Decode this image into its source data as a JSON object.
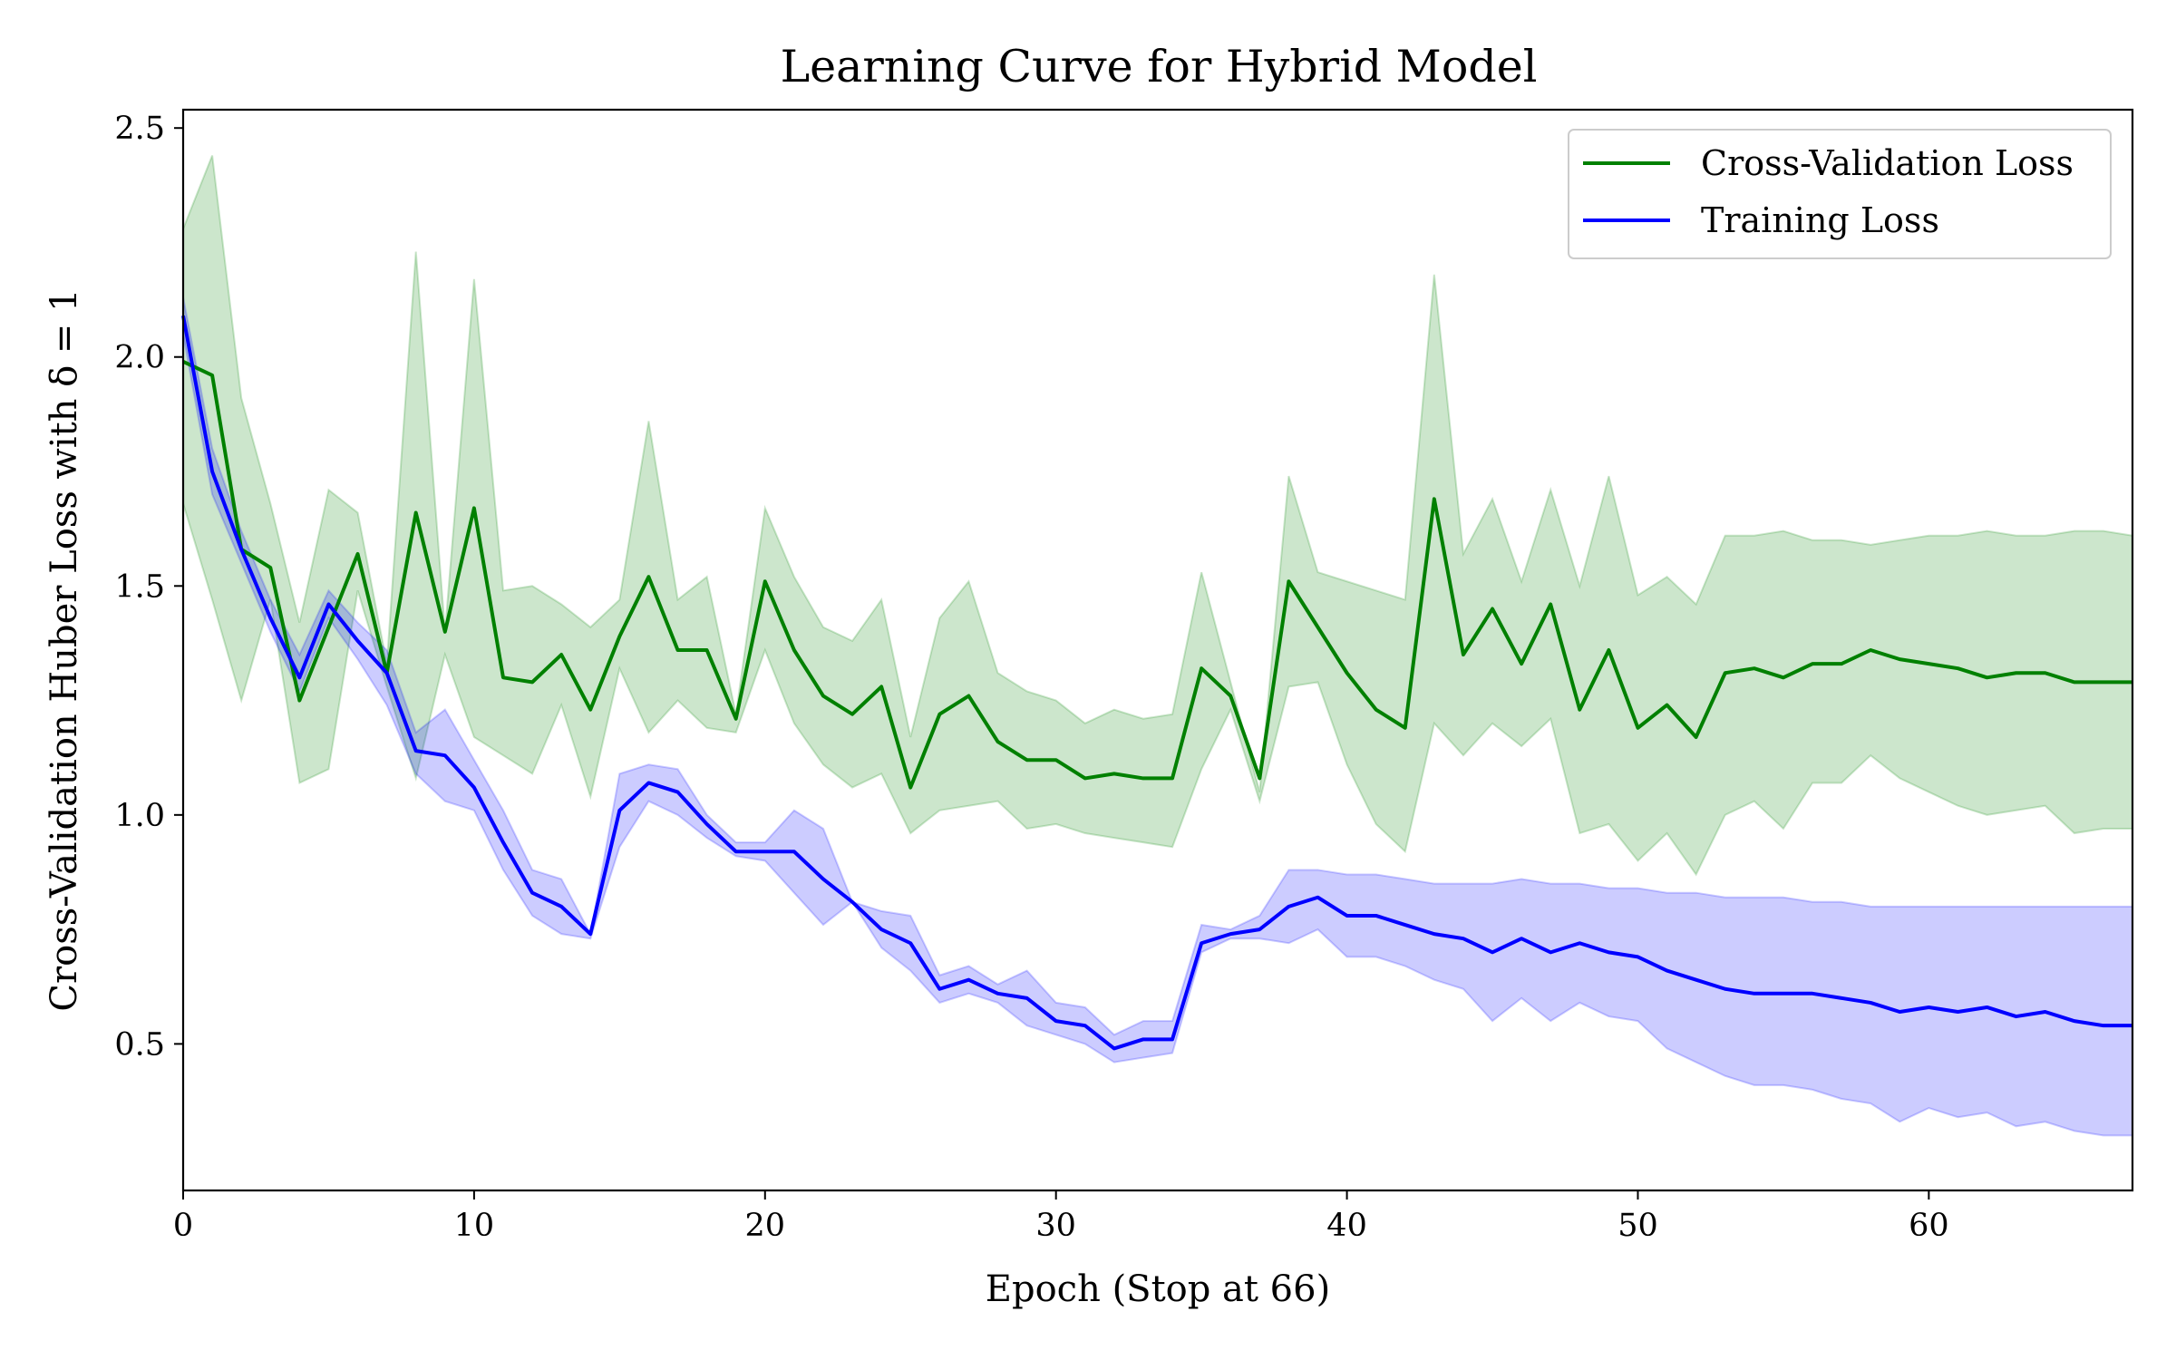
{
  "chart_data": {
    "type": "line",
    "title": "Learning Curve for Hybrid Model",
    "xlabel": "Epoch (Stop at 66)",
    "ylabel": "Cross-Validation Huber Loss with δ = 1",
    "xlim": [
      0,
      67
    ],
    "ylim": [
      0.18,
      2.54
    ],
    "xticks": [
      0,
      10,
      20,
      30,
      40,
      50,
      60
    ],
    "xtick_labels": [
      "0",
      "10",
      "20",
      "30",
      "40",
      "50",
      "60"
    ],
    "yticks": [
      0.5,
      1.0,
      1.5,
      2.0,
      2.5
    ],
    "ytick_labels": [
      "0.5",
      "1.0",
      "1.5",
      "2.0",
      "2.5"
    ],
    "legend_position": "top-right",
    "grid": false,
    "series": [
      {
        "name": "Cross-Validation Loss",
        "color": "#008000",
        "band_color": "#008000",
        "values": [
          1.99,
          1.96,
          1.58,
          1.54,
          1.25,
          1.41,
          1.57,
          1.31,
          1.66,
          1.4,
          1.67,
          1.3,
          1.29,
          1.35,
          1.23,
          1.39,
          1.52,
          1.36,
          1.36,
          1.21,
          1.51,
          1.36,
          1.26,
          1.22,
          1.28,
          1.06,
          1.22,
          1.26,
          1.16,
          1.12,
          1.12,
          1.08,
          1.09,
          1.08,
          1.08,
          1.32,
          1.26,
          1.08,
          1.51,
          1.41,
          1.31,
          1.23,
          1.19,
          1.69,
          1.35,
          1.45,
          1.33,
          1.46,
          1.23,
          1.36,
          1.19,
          1.24,
          1.17,
          1.31,
          1.32,
          1.3,
          1.33,
          1.33,
          1.36,
          1.34,
          1.33,
          1.32,
          1.3,
          1.31,
          1.31,
          1.29,
          1.29,
          1.29
        ],
        "upper": [
          2.28,
          2.44,
          1.91,
          1.68,
          1.42,
          1.71,
          1.66,
          1.33,
          2.23,
          1.4,
          2.17,
          1.49,
          1.5,
          1.46,
          1.41,
          1.47,
          1.86,
          1.47,
          1.52,
          1.22,
          1.67,
          1.52,
          1.41,
          1.38,
          1.47,
          1.17,
          1.43,
          1.51,
          1.31,
          1.27,
          1.25,
          1.2,
          1.23,
          1.21,
          1.22,
          1.53,
          1.29,
          1.05,
          1.74,
          1.53,
          1.51,
          1.49,
          1.47,
          2.18,
          1.57,
          1.69,
          1.51,
          1.71,
          1.5,
          1.74,
          1.48,
          1.52,
          1.46,
          1.61,
          1.61,
          1.62,
          1.6,
          1.6,
          1.59,
          1.6,
          1.61,
          1.61,
          1.62,
          1.61,
          1.61,
          1.62,
          1.62,
          1.61
        ],
        "lower": [
          1.68,
          1.47,
          1.25,
          1.47,
          1.07,
          1.1,
          1.49,
          1.28,
          1.08,
          1.35,
          1.17,
          1.13,
          1.09,
          1.24,
          1.04,
          1.32,
          1.18,
          1.25,
          1.19,
          1.18,
          1.36,
          1.2,
          1.11,
          1.06,
          1.09,
          0.96,
          1.01,
          1.02,
          1.03,
          0.97,
          0.98,
          0.96,
          0.95,
          0.94,
          0.93,
          1.1,
          1.23,
          1.03,
          1.28,
          1.29,
          1.11,
          0.98,
          0.92,
          1.2,
          1.13,
          1.2,
          1.15,
          1.21,
          0.96,
          0.98,
          0.9,
          0.96,
          0.87,
          1.0,
          1.03,
          0.97,
          1.07,
          1.07,
          1.13,
          1.08,
          1.05,
          1.02,
          1.0,
          1.01,
          1.02,
          0.96,
          0.97,
          0.97
        ]
      },
      {
        "name": "Training Loss",
        "color": "#0000ff",
        "band_color": "#0000ff",
        "values": [
          2.09,
          1.75,
          1.58,
          1.43,
          1.3,
          1.46,
          1.38,
          1.31,
          1.14,
          1.13,
          1.06,
          0.94,
          0.83,
          0.8,
          0.74,
          1.01,
          1.07,
          1.05,
          0.98,
          0.92,
          0.92,
          0.92,
          0.86,
          0.81,
          0.75,
          0.72,
          0.62,
          0.64,
          0.61,
          0.6,
          0.55,
          0.54,
          0.49,
          0.51,
          0.51,
          0.72,
          0.74,
          0.75,
          0.8,
          0.82,
          0.78,
          0.78,
          0.76,
          0.74,
          0.73,
          0.7,
          0.73,
          0.7,
          0.72,
          0.7,
          0.69,
          0.66,
          0.64,
          0.62,
          0.61,
          0.61,
          0.61,
          0.6,
          0.59,
          0.57,
          0.58,
          0.57,
          0.58,
          0.56,
          0.57,
          0.55,
          0.54,
          0.54
        ],
        "upper": [
          2.13,
          1.8,
          1.62,
          1.47,
          1.35,
          1.49,
          1.42,
          1.36,
          1.18,
          1.23,
          1.12,
          1.01,
          0.88,
          0.86,
          0.74,
          1.09,
          1.11,
          1.1,
          1.0,
          0.94,
          0.94,
          1.01,
          0.97,
          0.81,
          0.79,
          0.78,
          0.65,
          0.67,
          0.63,
          0.66,
          0.59,
          0.58,
          0.52,
          0.55,
          0.55,
          0.76,
          0.75,
          0.78,
          0.88,
          0.88,
          0.87,
          0.87,
          0.86,
          0.85,
          0.85,
          0.85,
          0.86,
          0.85,
          0.85,
          0.84,
          0.84,
          0.83,
          0.83,
          0.82,
          0.82,
          0.82,
          0.81,
          0.81,
          0.8,
          0.8,
          0.8,
          0.8,
          0.8,
          0.8,
          0.8,
          0.8,
          0.8,
          0.8
        ],
        "lower": [
          2.05,
          1.7,
          1.55,
          1.4,
          1.27,
          1.43,
          1.34,
          1.24,
          1.09,
          1.03,
          1.01,
          0.88,
          0.78,
          0.74,
          0.73,
          0.93,
          1.03,
          1.0,
          0.95,
          0.91,
          0.9,
          0.83,
          0.76,
          0.81,
          0.71,
          0.66,
          0.59,
          0.61,
          0.59,
          0.54,
          0.52,
          0.5,
          0.46,
          0.47,
          0.48,
          0.7,
          0.73,
          0.73,
          0.72,
          0.75,
          0.69,
          0.69,
          0.67,
          0.64,
          0.62,
          0.55,
          0.6,
          0.55,
          0.59,
          0.56,
          0.55,
          0.49,
          0.46,
          0.43,
          0.41,
          0.41,
          0.4,
          0.38,
          0.37,
          0.33,
          0.36,
          0.34,
          0.35,
          0.32,
          0.33,
          0.31,
          0.3,
          0.3
        ]
      }
    ]
  }
}
